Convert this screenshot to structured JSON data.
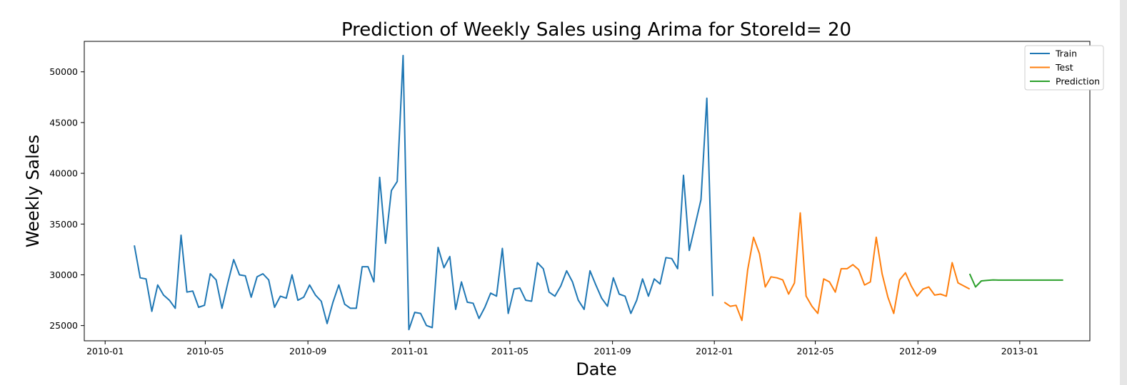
{
  "chart_data": {
    "type": "line",
    "title": "Prediction of Weekly Sales using Arima for StoreId= 20",
    "xlabel": "Date",
    "ylabel": "Weekly Sales",
    "x_tick_labels": [
      "2010-01",
      "2010-05",
      "2010-09",
      "2011-01",
      "2011-05",
      "2011-09",
      "2012-01",
      "2012-05",
      "2012-09",
      "2013-01"
    ],
    "y_ticks": [
      25000,
      30000,
      35000,
      40000,
      45000,
      50000
    ],
    "ylim": [
      23500,
      53000
    ],
    "xlim": [
      "2009-12-07",
      "2013-03-26"
    ],
    "grid": false,
    "legend_position": "upper right",
    "series": [
      {
        "name": "Train",
        "color": "#1f77b4",
        "start_date": "2010-02-05",
        "values": [
          32900,
          29700,
          29600,
          26400,
          29000,
          28000,
          27500,
          26700,
          33900,
          28300,
          28400,
          26800,
          27000,
          30100,
          29500,
          26700,
          29200,
          31500,
          30000,
          29900,
          27800,
          29800,
          30100,
          29500,
          26800,
          27900,
          27700,
          30000,
          27500,
          27800,
          29000,
          28000,
          27400,
          25200,
          27300,
          29000,
          27100,
          26700,
          26700,
          30800,
          30800,
          29300,
          39600,
          33100,
          38300,
          39200,
          51600,
          24600,
          26300,
          26200,
          25000,
          24800,
          32700,
          30700,
          31800,
          26600,
          29300,
          27300,
          27200,
          25700,
          26800,
          28200,
          27900,
          32600,
          26200,
          28600,
          28700,
          27500,
          27400,
          31200,
          30600,
          28300,
          27900,
          28900,
          30400,
          29300,
          27500,
          26600,
          30400,
          29000,
          27700,
          26900,
          29700,
          28100,
          27900,
          26200,
          27500,
          29600,
          27900,
          29600,
          29100,
          31700,
          31600,
          30600,
          39800,
          32400,
          34900,
          37400,
          47400,
          27900
        ]
      },
      {
        "name": "Test",
        "color": "#ff7f0e",
        "start_date": "2012-01-13",
        "values": [
          27300,
          26900,
          27000,
          25500,
          30500,
          33700,
          32100,
          28800,
          29800,
          29700,
          29500,
          28100,
          29200,
          36100,
          27900,
          26900,
          26200,
          29600,
          29300,
          28300,
          30600,
          30600,
          31000,
          30500,
          29000,
          29300,
          33700,
          30100,
          27800,
          26200,
          29500,
          30200,
          28900,
          27900,
          28600,
          28800,
          28000,
          28100,
          27900,
          31200,
          29200,
          28900,
          28600
        ]
      },
      {
        "name": "Prediction",
        "color": "#2ca02c",
        "start_date": "2012-11-02",
        "values": [
          30100,
          28800,
          29400,
          29450,
          29500,
          29480,
          29480,
          29480,
          29480,
          29480,
          29480,
          29480,
          29480,
          29480,
          29480,
          29480,
          29480
        ]
      }
    ]
  }
}
